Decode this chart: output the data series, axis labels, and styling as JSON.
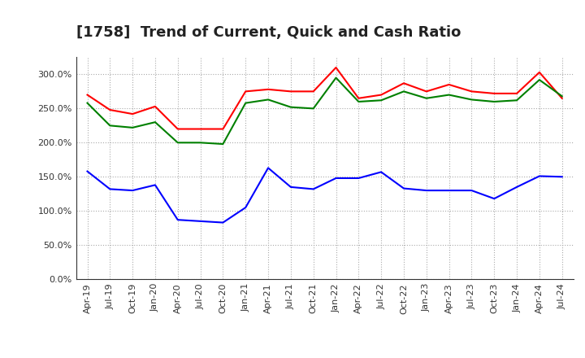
{
  "title": "[1758]  Trend of Current, Quick and Cash Ratio",
  "x_labels": [
    "Apr-19",
    "Jul-19",
    "Oct-19",
    "Jan-20",
    "Apr-20",
    "Jul-20",
    "Oct-20",
    "Jan-21",
    "Apr-21",
    "Jul-21",
    "Oct-21",
    "Jan-22",
    "Apr-22",
    "Jul-22",
    "Oct-22",
    "Jan-23",
    "Apr-23",
    "Jul-23",
    "Oct-23",
    "Jan-24",
    "Apr-24",
    "Jul-24"
  ],
  "current_ratio": [
    270,
    248,
    242,
    253,
    220,
    220,
    220,
    275,
    278,
    275,
    275,
    310,
    265,
    270,
    287,
    275,
    285,
    275,
    272,
    272,
    303,
    265
  ],
  "quick_ratio": [
    258,
    225,
    222,
    230,
    200,
    200,
    198,
    258,
    263,
    252,
    250,
    295,
    260,
    262,
    275,
    265,
    270,
    263,
    260,
    262,
    292,
    268
  ],
  "cash_ratio": [
    158,
    132,
    130,
    138,
    87,
    85,
    83,
    105,
    163,
    135,
    132,
    148,
    148,
    157,
    133,
    130,
    130,
    130,
    118,
    135,
    151,
    150
  ],
  "current_color": "#FF0000",
  "quick_color": "#008000",
  "cash_color": "#0000FF",
  "ylim": [
    0,
    325
  ],
  "yticks": [
    0,
    50,
    100,
    150,
    200,
    250,
    300
  ],
  "background_color": "#FFFFFF",
  "grid_color": "#AAAAAA",
  "title_fontsize": 13,
  "legend_fontsize": 9,
  "axis_fontsize": 8
}
